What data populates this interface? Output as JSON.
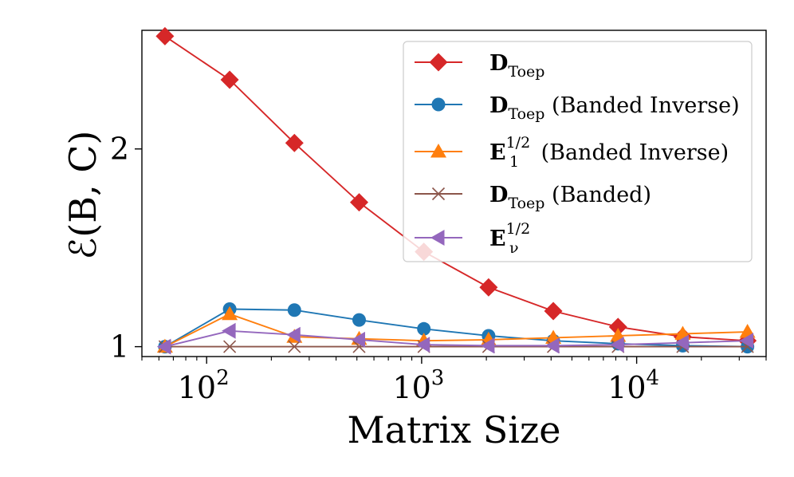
{
  "chart_data": {
    "type": "line",
    "xscale": "log",
    "xlabel": "Matrix Size",
    "ylabel": "ℰ(B, C)",
    "xlim": [
      50,
      40000
    ],
    "ylim": [
      0.95,
      2.6
    ],
    "x_ticks": [
      {
        "value": 100,
        "base": "10",
        "exp": "2"
      },
      {
        "value": 1000,
        "base": "10",
        "exp": "3"
      },
      {
        "value": 10000,
        "base": "10",
        "exp": "4"
      }
    ],
    "y_ticks": [
      {
        "value": 1,
        "label": "1"
      },
      {
        "value": 2,
        "label": "2"
      }
    ],
    "x": [
      64,
      128,
      256,
      512,
      1024,
      2048,
      4096,
      8192,
      16384,
      32768
    ],
    "series": [
      {
        "name": "D_Toep",
        "bold": "D",
        "sub": "Toep",
        "sup": "",
        "suffix": "",
        "color": "#d62728",
        "marker": "diamond",
        "values": [
          2.57,
          2.35,
          2.03,
          1.73,
          1.48,
          1.3,
          1.18,
          1.1,
          1.05,
          1.03
        ]
      },
      {
        "name": "D_Toep (Banded Inverse)",
        "bold": "D",
        "sub": "Toep",
        "sup": "",
        "suffix": " (Banded Inverse)",
        "color": "#1f77b4",
        "marker": "circle",
        "values": [
          1.0,
          1.19,
          1.185,
          1.135,
          1.09,
          1.055,
          1.03,
          1.015,
          1.005,
          1.0
        ]
      },
      {
        "name": "E_1^{1/2} (Banded Inverse)",
        "bold": "E",
        "sub": "1",
        "sup": "1/2",
        "suffix": " (Banded Inverse)",
        "color": "#ff7f0e",
        "marker": "triangle-up",
        "values": [
          1.0,
          1.165,
          1.05,
          1.04,
          1.03,
          1.035,
          1.045,
          1.055,
          1.065,
          1.075
        ]
      },
      {
        "name": "D_Toep (Banded)",
        "bold": "D",
        "sub": "Toep",
        "sup": "",
        "suffix": " (Banded)",
        "color": "#8c564b",
        "marker": "x",
        "values": [
          1.0,
          1.0,
          1.0,
          1.0,
          1.0,
          1.0,
          1.0,
          1.0,
          1.0,
          1.0
        ]
      },
      {
        "name": "E_nu^{1/2}",
        "bold": "E",
        "sub": "ν",
        "sup": "1/2",
        "suffix": "",
        "color": "#9467bd",
        "marker": "triangle-left",
        "values": [
          1.0,
          1.08,
          1.06,
          1.035,
          1.01,
          1.005,
          1.005,
          1.01,
          1.02,
          1.03
        ]
      }
    ],
    "legend": "top-right",
    "grid": false
  }
}
